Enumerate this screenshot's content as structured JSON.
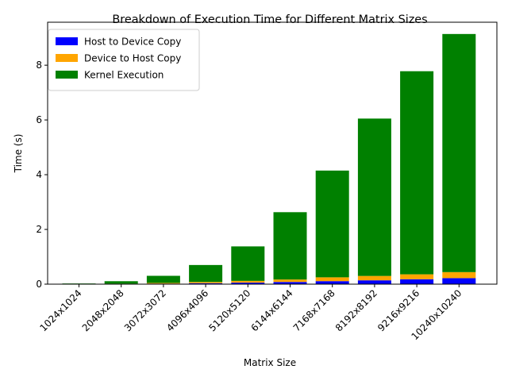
{
  "chart_data": {
    "type": "bar",
    "stacked": true,
    "title": "Breakdown of Execution Time for Different Matrix Sizes",
    "xlabel": "Matrix Size",
    "ylabel": "Time (s)",
    "ylim": [
      0,
      9.57
    ],
    "yticks": [
      0,
      2,
      4,
      6,
      8
    ],
    "grid": false,
    "legend_position": "top-left",
    "categories": [
      "1024x1024",
      "2048x2048",
      "3072x3072",
      "4096x4096",
      "5120x5120",
      "6144x6144",
      "7168x7168",
      "8192x8192",
      "9216x9216",
      "10240x10240"
    ],
    "series": [
      {
        "name": "Host to Device Copy",
        "color": "#0000ff",
        "values": [
          0.002,
          0.008,
          0.02,
          0.035,
          0.055,
          0.08,
          0.11,
          0.14,
          0.18,
          0.22
        ]
      },
      {
        "name": "Device to Host Copy",
        "color": "#ffa500",
        "values": [
          0.002,
          0.01,
          0.025,
          0.045,
          0.065,
          0.09,
          0.14,
          0.16,
          0.18,
          0.22
        ]
      },
      {
        "name": "Kernel Execution",
        "color": "#008000",
        "values": [
          0.02,
          0.09,
          0.26,
          0.62,
          1.26,
          2.46,
          3.9,
          5.75,
          7.42,
          8.7
        ]
      }
    ]
  }
}
